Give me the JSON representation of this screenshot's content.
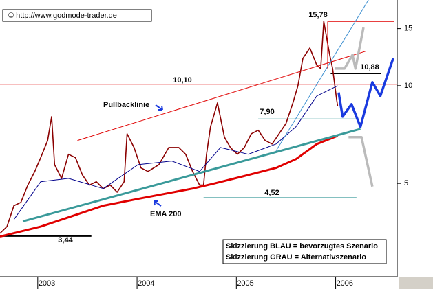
{
  "chart_data": {
    "type": "line",
    "source": "© http://www.godmode-trader.de",
    "yscale": "log",
    "ylim": [
      2.58,
      18.37
    ],
    "yticks": [
      5,
      10,
      15
    ],
    "xlim": [
      2002.62,
      2006.62
    ],
    "xticks": [
      2003,
      2004,
      2005,
      2006
    ],
    "series": [
      {
        "color": "#8b0000",
        "style": "price",
        "x": [
          2002.62,
          2002.69,
          2002.76,
          2002.83,
          2002.9,
          2002.97,
          2003.03,
          2003.1,
          2003.14,
          2003.17,
          2003.24,
          2003.31,
          2003.38,
          2003.45,
          2003.52,
          2003.59,
          2003.66,
          2003.73,
          2003.8,
          2003.87,
          2003.9,
          2003.97,
          2004.04,
          2004.11,
          2004.22,
          2004.32,
          2004.42,
          2004.49,
          2004.56,
          2004.63,
          2004.67,
          2004.7,
          2004.74,
          2004.81,
          2004.88,
          2004.94,
          2005.01,
          2005.08,
          2005.15,
          2005.22,
          2005.29,
          2005.36,
          2005.43,
          2005.5,
          2005.57,
          2005.62,
          2005.67,
          2005.74,
          2005.81,
          2005.85,
          2005.88,
          2005.94,
          2005.97,
          2006.01,
          2006.02
        ],
        "values": [
          3.51,
          3.68,
          4.27,
          4.37,
          4.94,
          5.44,
          6.0,
          6.78,
          8.03,
          5.71,
          5.18,
          6.15,
          6.0,
          5.31,
          4.94,
          5.06,
          4.82,
          4.94,
          4.7,
          5.06,
          7.11,
          6.45,
          5.58,
          5.44,
          5.71,
          6.45,
          6.45,
          6.15,
          5.44,
          4.94,
          4.94,
          6.15,
          7.47,
          8.85,
          6.94,
          6.45,
          6.15,
          6.45,
          7.11,
          7.29,
          6.78,
          6.61,
          7.11,
          7.65,
          8.85,
          10.0,
          12.15,
          13.07,
          11.57,
          11.29,
          15.78,
          12.45,
          11.29,
          9.07,
          8.64
        ]
      },
      {
        "color": "#e00000",
        "style": "thick",
        "x": [
          2002.62,
          2003.03,
          2003.66,
          2004.01,
          2004.56,
          2004.77,
          2005.05,
          2005.4,
          2005.6,
          2005.81,
          2006.02
        ],
        "values": [
          3.43,
          3.68,
          4.27,
          4.48,
          4.82,
          4.99,
          5.24,
          5.58,
          5.94,
          6.61,
          7.01
        ]
      },
      {
        "color": "#00008b",
        "style": "thin",
        "x": [
          2002.76,
          2003.03,
          2003.31,
          2003.66,
          2004.01,
          2004.35,
          2004.63,
          2004.84,
          2005.12,
          2005.4,
          2005.6,
          2005.81,
          2006.02
        ],
        "values": [
          3.87,
          5.06,
          5.18,
          4.82,
          5.71,
          5.86,
          5.44,
          6.45,
          6.15,
          6.61,
          7.47,
          9.3,
          10.0
        ]
      },
      {
        "color": "#3a9a9a",
        "style": "thick",
        "x": [
          2002.85,
          2006.25
        ],
        "values": [
          3.82,
          7.36
        ]
      },
      {
        "color": "#e00000",
        "style": "thin",
        "x": [
          2003.4,
          2006.3
        ],
        "values": [
          6.78,
          12.76
        ]
      },
      {
        "color": "#3c8fd0",
        "style": "thin",
        "x": [
          2005.4,
          2006.33
        ],
        "values": [
          6.3,
          18.37
        ]
      },
      {
        "color": "#e00000",
        "style": "thin",
        "x": [
          2005.92,
          2005.92
        ],
        "values": [
          15.78,
          11.29
        ]
      },
      {
        "color": "#1a3adf",
        "style": "scenario",
        "x": [
          2006.03,
          2006.07,
          2006.16,
          2006.25,
          2006.37,
          2006.45,
          2006.58
        ],
        "values": [
          9.53,
          8.03,
          8.77,
          7.47,
          10.25,
          9.3,
          12.15
        ]
      },
      {
        "color": "#bbbbbb",
        "style": "scenario",
        "x": [
          2005.99,
          2006.09,
          2006.17,
          2006.2,
          2006.28
        ],
        "values": [
          11.29,
          11.29,
          12.45,
          11.29,
          15.12
        ]
      },
      {
        "color": "#bbbbbb",
        "style": "scenario",
        "x": [
          2006.13,
          2006.26,
          2006.37
        ],
        "values": [
          6.94,
          6.94,
          4.89
        ]
      }
    ],
    "levels": [
      {
        "value": 15.78,
        "label": "15,78",
        "color": "#e00000",
        "x": [
          2005.92,
          2006.59
        ]
      },
      {
        "value": 10.1,
        "label": "10,10",
        "color": "#e00000",
        "x": [
          2002.62,
          2006.62
        ]
      },
      {
        "value": 7.9,
        "label": "7,90",
        "color": "#3a9a9a",
        "x": [
          2005.22,
          2006.21
        ]
      },
      {
        "value": 4.52,
        "label": "4,52",
        "color": "#3a9a9a",
        "x": [
          2004.67,
          2006.21
        ]
      },
      {
        "value": 3.44,
        "label": "3,44",
        "color": "#000000",
        "x": [
          2002.62,
          2003.54
        ]
      },
      {
        "value": 10.88,
        "label": "10,88",
        "color": "#000000",
        "x": [
          2005.95,
          2006.46
        ]
      }
    ],
    "annotations": [
      "Pullbacklinie",
      "EMA 200"
    ],
    "note": [
      "Skizzierung BLAU = bevorzugtes Szenario",
      "Skizzierung GRAU = Alternativszenario"
    ]
  }
}
